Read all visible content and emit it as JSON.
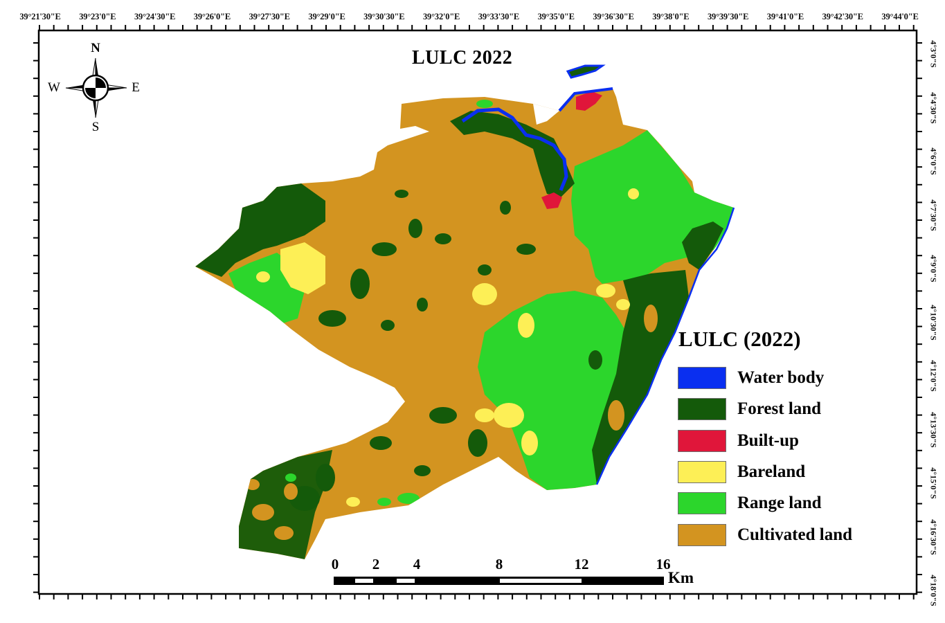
{
  "map": {
    "title": "LULC 2022",
    "longitude_labels": [
      "39°21'30\"E",
      "39°23'0\"E",
      "39°24'30\"E",
      "39°26'0\"E",
      "39°27'30\"E",
      "39°29'0\"E",
      "39°30'30\"E",
      "39°32'0\"E",
      "39°33'30\"E",
      "39°35'0\"E",
      "39°36'30\"E",
      "39°38'0\"E",
      "39°39'30\"E",
      "39°41'0\"E",
      "39°42'30\"E",
      "39°44'0\"E"
    ],
    "latitude_labels": [
      "4°3'0\"S",
      "4°4'30\"S",
      "4°6'0\"S",
      "4°7'30\"S",
      "4°9'0\"S",
      "4°10'30\"S",
      "4°12'0\"S",
      "4°13'30\"S",
      "4°15'0\"S",
      "4°16'30\"S",
      "4°18'0\"S"
    ]
  },
  "compass": {
    "north": "N",
    "south": "S",
    "east": "E",
    "west": "W"
  },
  "legend": {
    "title": "LULC (2022)",
    "items": [
      {
        "label": "Water body",
        "color": "#0a2ff0"
      },
      {
        "label": "Forest land",
        "color": "#145a0a"
      },
      {
        "label": "Built-up",
        "color": "#e0163a"
      },
      {
        "label": "Bareland",
        "color": "#fdef56"
      },
      {
        "label": "Range land",
        "color": "#2cd62c"
      },
      {
        "label": "Cultivated land",
        "color": "#d39420"
      }
    ]
  },
  "scale_bar": {
    "ticks": [
      "0",
      "2",
      "4",
      "8",
      "12",
      "16"
    ],
    "unit": "Km"
  }
}
